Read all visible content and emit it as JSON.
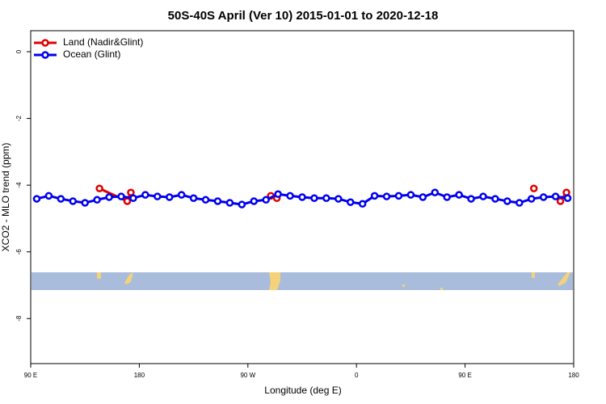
{
  "chart_data": {
    "type": "line",
    "title": "50S-40S April (Ver 10)   2015-01-01 to 2020-12-18",
    "x_label": "Longitude (deg E)",
    "y_label": "XCO2 - MLO trend (ppm)",
    "xlim": [
      90,
      540
    ],
    "ylim": [
      -9.35,
      0.63
    ],
    "xticks": [
      {
        "value": 90,
        "label": "90 E"
      },
      180,
      {
        "value": 270,
        "label": "90 W"
      },
      {
        "value": 360,
        "label": "0"
      },
      {
        "value": 450,
        "label": "90 E"
      },
      {
        "value": 540,
        "label": "180"
      }
    ],
    "yticks": [
      0,
      -2,
      -4,
      -6,
      -8
    ],
    "legend": "top-left",
    "series": [
      {
        "name": "Land (Nadir&Glint)",
        "color": "#e00000",
        "x": [
          147,
          170,
          173,
          null,
          289,
          294,
          null,
          507,
          null,
          529,
          534
        ],
        "values": [
          -4.1,
          -4.48,
          -4.22,
          null,
          -4.32,
          -4.39,
          null,
          -4.1,
          null,
          -4.48,
          -4.22
        ]
      },
      {
        "name": "Ocean (Glint)",
        "color": "#0000ee",
        "x": [
          95,
          105,
          115,
          125,
          135,
          145,
          155,
          165,
          175,
          185,
          195,
          205,
          215,
          225,
          235,
          245,
          255,
          265,
          275,
          285,
          295,
          305,
          315,
          325,
          335,
          345,
          355,
          365,
          375,
          385,
          395,
          405,
          415,
          425,
          435,
          445,
          455,
          465,
          475,
          485,
          495,
          505,
          515,
          525,
          535
        ],
        "values": [
          -4.41,
          -4.32,
          -4.41,
          -4.48,
          -4.53,
          -4.44,
          -4.36,
          -4.34,
          -4.39,
          -4.29,
          -4.34,
          -4.36,
          -4.29,
          -4.39,
          -4.44,
          -4.48,
          -4.53,
          -4.58,
          -4.48,
          -4.44,
          -4.27,
          -4.32,
          -4.36,
          -4.39,
          -4.39,
          -4.41,
          -4.51,
          -4.56,
          -4.32,
          -4.34,
          -4.32,
          -4.29,
          -4.36,
          -4.22,
          -4.36,
          -4.29,
          -4.41,
          -4.34,
          -4.41,
          -4.48,
          -4.53,
          -4.41,
          -4.36,
          -4.34,
          -4.39
        ]
      }
    ]
  }
}
